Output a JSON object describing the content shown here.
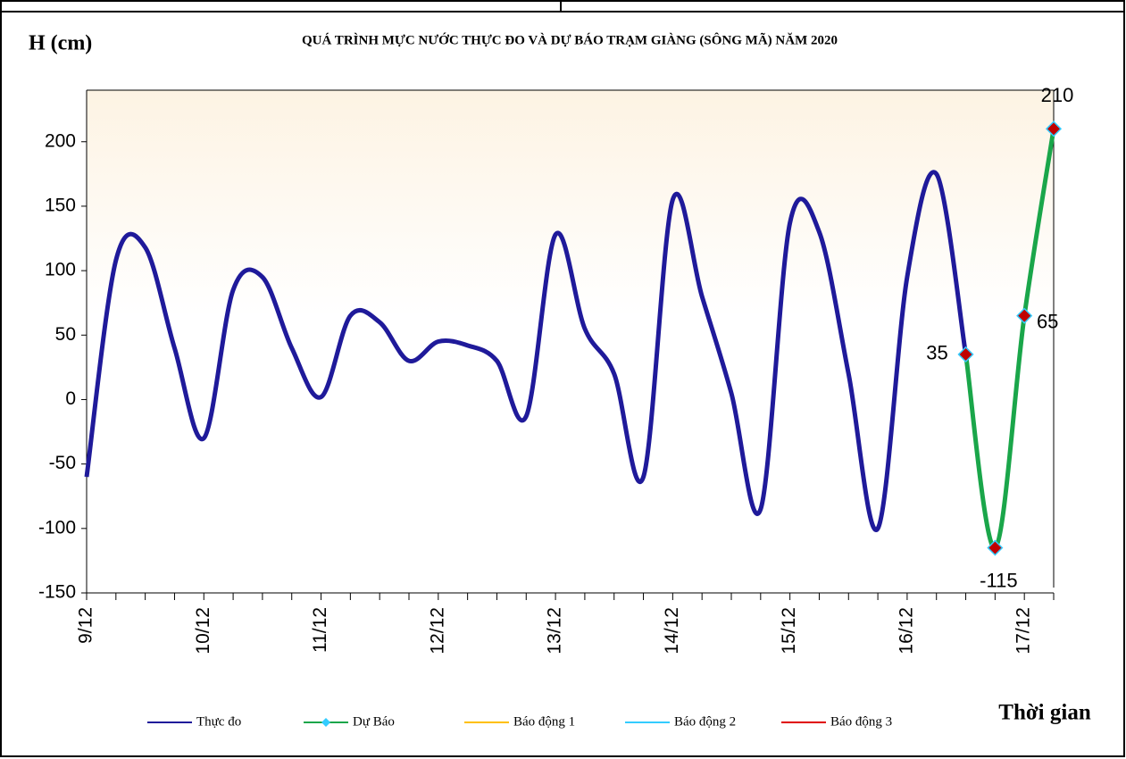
{
  "chart_data": {
    "type": "line",
    "title": "QUÁ TRÌNH MỰC NƯỚC THỰC ĐO VÀ DỰ BÁO TRẠM GIÀNG (SÔNG MÃ) NĂM 2020",
    "y_label": "H (cm)",
    "x_label": "Thời gian",
    "xlim": [
      0,
      8.25
    ],
    "xticks": [
      {
        "value": 0,
        "label": "9/12"
      },
      {
        "value": 1,
        "label": "10/12"
      },
      {
        "value": 2,
        "label": "11/12"
      },
      {
        "value": 3,
        "label": "12/12"
      },
      {
        "value": 4,
        "label": "13/12"
      },
      {
        "value": 5,
        "label": "14/12"
      },
      {
        "value": 6,
        "label": "15/12"
      },
      {
        "value": 7,
        "label": "16/12"
      },
      {
        "value": 8,
        "label": "17/12"
      }
    ],
    "xminorticks": [
      0.25,
      0.5,
      0.75,
      1.25,
      1.5,
      1.75,
      2.25,
      2.5,
      2.75,
      3.25,
      3.5,
      3.75,
      4.25,
      4.5,
      4.75,
      5.25,
      5.5,
      5.75,
      6.25,
      6.5,
      6.75,
      7.25,
      7.5,
      7.75,
      8.25
    ],
    "ylim": [
      -150,
      240
    ],
    "yticks": [
      -150,
      -100,
      -50,
      0,
      50,
      100,
      150,
      200
    ],
    "series": [
      {
        "name": "Thực đo",
        "color": "#1f1a9a",
        "x": [
          0,
          0.25,
          0.5,
          0.75,
          1,
          1.25,
          1.5,
          1.75,
          2,
          2.25,
          2.5,
          2.75,
          3,
          3.25,
          3.5,
          3.75,
          4,
          4.25,
          4.5,
          4.75,
          5,
          5.25,
          5.5,
          5.75,
          6,
          6.25,
          6.5,
          6.75,
          7,
          7.25,
          7.5
        ],
        "values": [
          -60,
          108,
          118,
          40,
          -30,
          85,
          95,
          40,
          2,
          65,
          60,
          30,
          45,
          42,
          30,
          -13,
          128,
          55,
          20,
          -60,
          155,
          80,
          5,
          -85,
          137,
          130,
          20,
          -100,
          95,
          175,
          35
        ]
      },
      {
        "name": "Dự Báo",
        "color": "#1aa64a",
        "marker_color": "#c00000",
        "marker_edge": "#33ccff",
        "x": [
          7.5,
          7.75,
          8,
          8.25
        ],
        "values": [
          35,
          -115,
          65,
          210
        ]
      },
      {
        "name": "Báo động 1",
        "color": "#ffc000"
      },
      {
        "name": "Báo động 2",
        "color": "#33ccff"
      },
      {
        "name": "Báo động 3",
        "color": "#e00000"
      }
    ]
  }
}
